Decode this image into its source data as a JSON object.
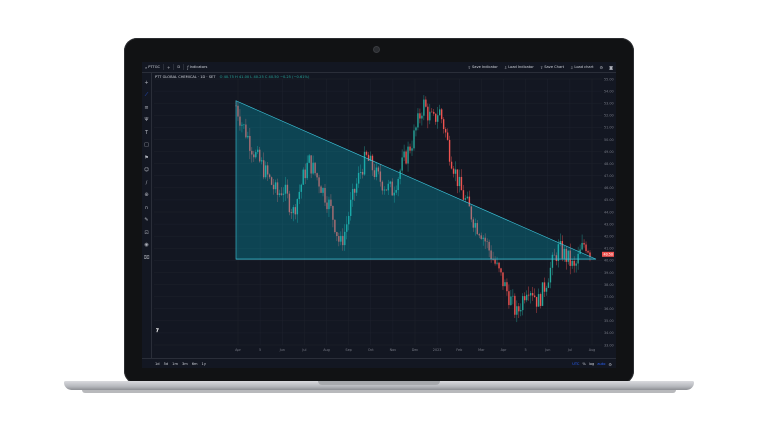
{
  "topbar": {
    "symbol_search": "PTTGC",
    "plus_icon": "+",
    "interval": "D",
    "indicators_label": "Indicators",
    "save_indicator_label": "Save Indicator",
    "load_indicator_label": "Load Indicator",
    "save_chart_label": "Save Chart",
    "load_chart_label": "Load chart"
  },
  "legend": {
    "title": "PTT GLOBAL CHEMICAL · 1D · SET",
    "ohlc": "O 40.75 H 41.00 L 40.25 C 40.50 −0.25 (−0.61%)"
  },
  "chart_data": {
    "type": "candlestick",
    "x_tick_labels": [
      "Apr",
      "5",
      "Jun",
      "Jul",
      "Aug",
      "Sep",
      "Oct",
      "Nov",
      "Dec",
      "2023",
      "Feb",
      "Mar",
      "Apr",
      "5",
      "Jun",
      "Jul",
      "Aug"
    ],
    "y_tick_labels": [
      "55.00",
      "54.00",
      "53.00",
      "52.00",
      "51.00",
      "50.00",
      "49.00",
      "48.00",
      "47.00",
      "46.00",
      "45.00",
      "44.00",
      "43.00",
      "42.00",
      "41.00",
      "40.00",
      "39.00",
      "38.00",
      "37.00",
      "36.00",
      "35.00",
      "34.00",
      "33.00"
    ],
    "ylim": [
      33,
      55
    ],
    "last_price": "40.50",
    "colors": {
      "up": "#26a69a",
      "down": "#ef5350",
      "drawing": "#3ec8de",
      "fill": "rgba(0,188,212,0.28)",
      "bg": "#131722",
      "grid": "#1e222d"
    },
    "triangle_drawing": {
      "top_left_price": 53.2,
      "base_price": 40.1,
      "note": "descending triangle pattern drawn across the chart"
    },
    "series_path_prices": [
      52.8,
      51.5,
      50.5,
      49.4,
      48.5,
      47.8,
      47.0,
      46.2,
      45.4,
      46.0,
      45.0,
      44.0,
      45.5,
      47.0,
      48.2,
      47.4,
      46.5,
      45.5,
      44.5,
      43.0,
      41.2,
      42.5,
      44.5,
      46.0,
      47.5,
      48.5,
      47.8,
      47.0,
      46.5,
      46.0,
      45.8,
      46.8,
      48.0,
      49.0,
      50.0,
      51.5,
      53.0,
      52.0,
      51.5,
      52.5,
      51.0,
      49.0,
      47.5,
      46.0,
      45.0,
      44.0,
      43.0,
      42.5,
      41.5,
      40.5,
      39.5,
      38.5,
      37.5,
      36.5,
      35.5,
      36.8,
      38.0,
      37.5,
      36.5,
      37.5,
      38.8,
      40.0,
      41.0,
      40.5,
      40.0,
      39.2,
      40.5,
      41.5,
      40.8
    ]
  },
  "bottombar": {
    "ranges": [
      "1d",
      "5d",
      "1m",
      "3m",
      "6m",
      "1y"
    ],
    "utc": "UTC",
    "percent": "%",
    "log": "log",
    "auto": "auto"
  }
}
